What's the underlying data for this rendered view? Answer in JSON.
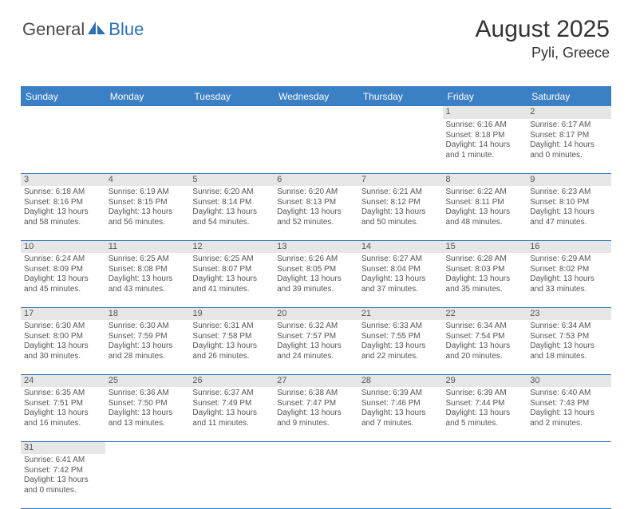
{
  "logo": {
    "text1": "General",
    "text2": "Blue"
  },
  "title": "August 2025",
  "location": "Pyli, Greece",
  "colors": {
    "header_bg": "#3b7fc4",
    "header_text": "#ffffff",
    "daynum_bg": "#e6e6e6",
    "body_text": "#555555",
    "row_border": "#3b7fc4"
  },
  "day_headers": [
    "Sunday",
    "Monday",
    "Tuesday",
    "Wednesday",
    "Thursday",
    "Friday",
    "Saturday"
  ],
  "weeks": [
    [
      null,
      null,
      null,
      null,
      null,
      {
        "n": "1",
        "sunrise": "6:16 AM",
        "sunset": "8:18 PM",
        "dayh": "14",
        "daym": "1"
      },
      {
        "n": "2",
        "sunrise": "6:17 AM",
        "sunset": "8:17 PM",
        "dayh": "14",
        "daym": "0"
      }
    ],
    [
      {
        "n": "3",
        "sunrise": "6:18 AM",
        "sunset": "8:16 PM",
        "dayh": "13",
        "daym": "58"
      },
      {
        "n": "4",
        "sunrise": "6:19 AM",
        "sunset": "8:15 PM",
        "dayh": "13",
        "daym": "56"
      },
      {
        "n": "5",
        "sunrise": "6:20 AM",
        "sunset": "8:14 PM",
        "dayh": "13",
        "daym": "54"
      },
      {
        "n": "6",
        "sunrise": "6:20 AM",
        "sunset": "8:13 PM",
        "dayh": "13",
        "daym": "52"
      },
      {
        "n": "7",
        "sunrise": "6:21 AM",
        "sunset": "8:12 PM",
        "dayh": "13",
        "daym": "50"
      },
      {
        "n": "8",
        "sunrise": "6:22 AM",
        "sunset": "8:11 PM",
        "dayh": "13",
        "daym": "48"
      },
      {
        "n": "9",
        "sunrise": "6:23 AM",
        "sunset": "8:10 PM",
        "dayh": "13",
        "daym": "47"
      }
    ],
    [
      {
        "n": "10",
        "sunrise": "6:24 AM",
        "sunset": "8:09 PM",
        "dayh": "13",
        "daym": "45"
      },
      {
        "n": "11",
        "sunrise": "6:25 AM",
        "sunset": "8:08 PM",
        "dayh": "13",
        "daym": "43"
      },
      {
        "n": "12",
        "sunrise": "6:25 AM",
        "sunset": "8:07 PM",
        "dayh": "13",
        "daym": "41"
      },
      {
        "n": "13",
        "sunrise": "6:26 AM",
        "sunset": "8:05 PM",
        "dayh": "13",
        "daym": "39"
      },
      {
        "n": "14",
        "sunrise": "6:27 AM",
        "sunset": "8:04 PM",
        "dayh": "13",
        "daym": "37"
      },
      {
        "n": "15",
        "sunrise": "6:28 AM",
        "sunset": "8:03 PM",
        "dayh": "13",
        "daym": "35"
      },
      {
        "n": "16",
        "sunrise": "6:29 AM",
        "sunset": "8:02 PM",
        "dayh": "13",
        "daym": "33"
      }
    ],
    [
      {
        "n": "17",
        "sunrise": "6:30 AM",
        "sunset": "8:00 PM",
        "dayh": "13",
        "daym": "30"
      },
      {
        "n": "18",
        "sunrise": "6:30 AM",
        "sunset": "7:59 PM",
        "dayh": "13",
        "daym": "28"
      },
      {
        "n": "19",
        "sunrise": "6:31 AM",
        "sunset": "7:58 PM",
        "dayh": "13",
        "daym": "26"
      },
      {
        "n": "20",
        "sunrise": "6:32 AM",
        "sunset": "7:57 PM",
        "dayh": "13",
        "daym": "24"
      },
      {
        "n": "21",
        "sunrise": "6:33 AM",
        "sunset": "7:55 PM",
        "dayh": "13",
        "daym": "22"
      },
      {
        "n": "22",
        "sunrise": "6:34 AM",
        "sunset": "7:54 PM",
        "dayh": "13",
        "daym": "20"
      },
      {
        "n": "23",
        "sunrise": "6:34 AM",
        "sunset": "7:53 PM",
        "dayh": "13",
        "daym": "18"
      }
    ],
    [
      {
        "n": "24",
        "sunrise": "6:35 AM",
        "sunset": "7:51 PM",
        "dayh": "13",
        "daym": "16"
      },
      {
        "n": "25",
        "sunrise": "6:36 AM",
        "sunset": "7:50 PM",
        "dayh": "13",
        "daym": "13"
      },
      {
        "n": "26",
        "sunrise": "6:37 AM",
        "sunset": "7:49 PM",
        "dayh": "13",
        "daym": "11"
      },
      {
        "n": "27",
        "sunrise": "6:38 AM",
        "sunset": "7:47 PM",
        "dayh": "13",
        "daym": "9"
      },
      {
        "n": "28",
        "sunrise": "6:39 AM",
        "sunset": "7:46 PM",
        "dayh": "13",
        "daym": "7"
      },
      {
        "n": "29",
        "sunrise": "6:39 AM",
        "sunset": "7:44 PM",
        "dayh": "13",
        "daym": "5"
      },
      {
        "n": "30",
        "sunrise": "6:40 AM",
        "sunset": "7:43 PM",
        "dayh": "13",
        "daym": "2"
      }
    ],
    [
      {
        "n": "31",
        "sunrise": "6:41 AM",
        "sunset": "7:42 PM",
        "dayh": "13",
        "daym": "0"
      },
      null,
      null,
      null,
      null,
      null,
      null
    ]
  ]
}
